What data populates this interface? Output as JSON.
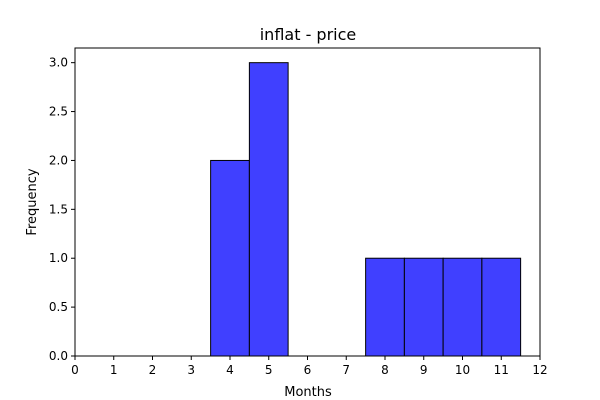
{
  "chart_data": {
    "type": "bar",
    "title": "inflat - price",
    "xlabel": "Months",
    "ylabel": "Frequency",
    "xlim": [
      0,
      12
    ],
    "ylim": [
      0,
      3.15
    ],
    "xticks": [
      "0",
      "1",
      "2",
      "3",
      "4",
      "5",
      "6",
      "7",
      "8",
      "9",
      "10",
      "11",
      "12"
    ],
    "yticks": [
      "0.0",
      "0.5",
      "1.0",
      "1.5",
      "2.0",
      "2.5",
      "3.0"
    ],
    "bins": [
      {
        "start": 3.5,
        "end": 4.5,
        "value": 2
      },
      {
        "start": 4.5,
        "end": 5.5,
        "value": 3
      },
      {
        "start": 5.5,
        "end": 6.5,
        "value": 0
      },
      {
        "start": 6.5,
        "end": 7.5,
        "value": 0
      },
      {
        "start": 7.5,
        "end": 8.5,
        "value": 1
      },
      {
        "start": 8.5,
        "end": 9.5,
        "value": 1
      },
      {
        "start": 9.5,
        "end": 10.5,
        "value": 1
      },
      {
        "start": 10.5,
        "end": 11.5,
        "value": 1
      }
    ],
    "bar_color": "#4040ff",
    "edge_color": "#000000",
    "grid": false,
    "legend": "none"
  }
}
